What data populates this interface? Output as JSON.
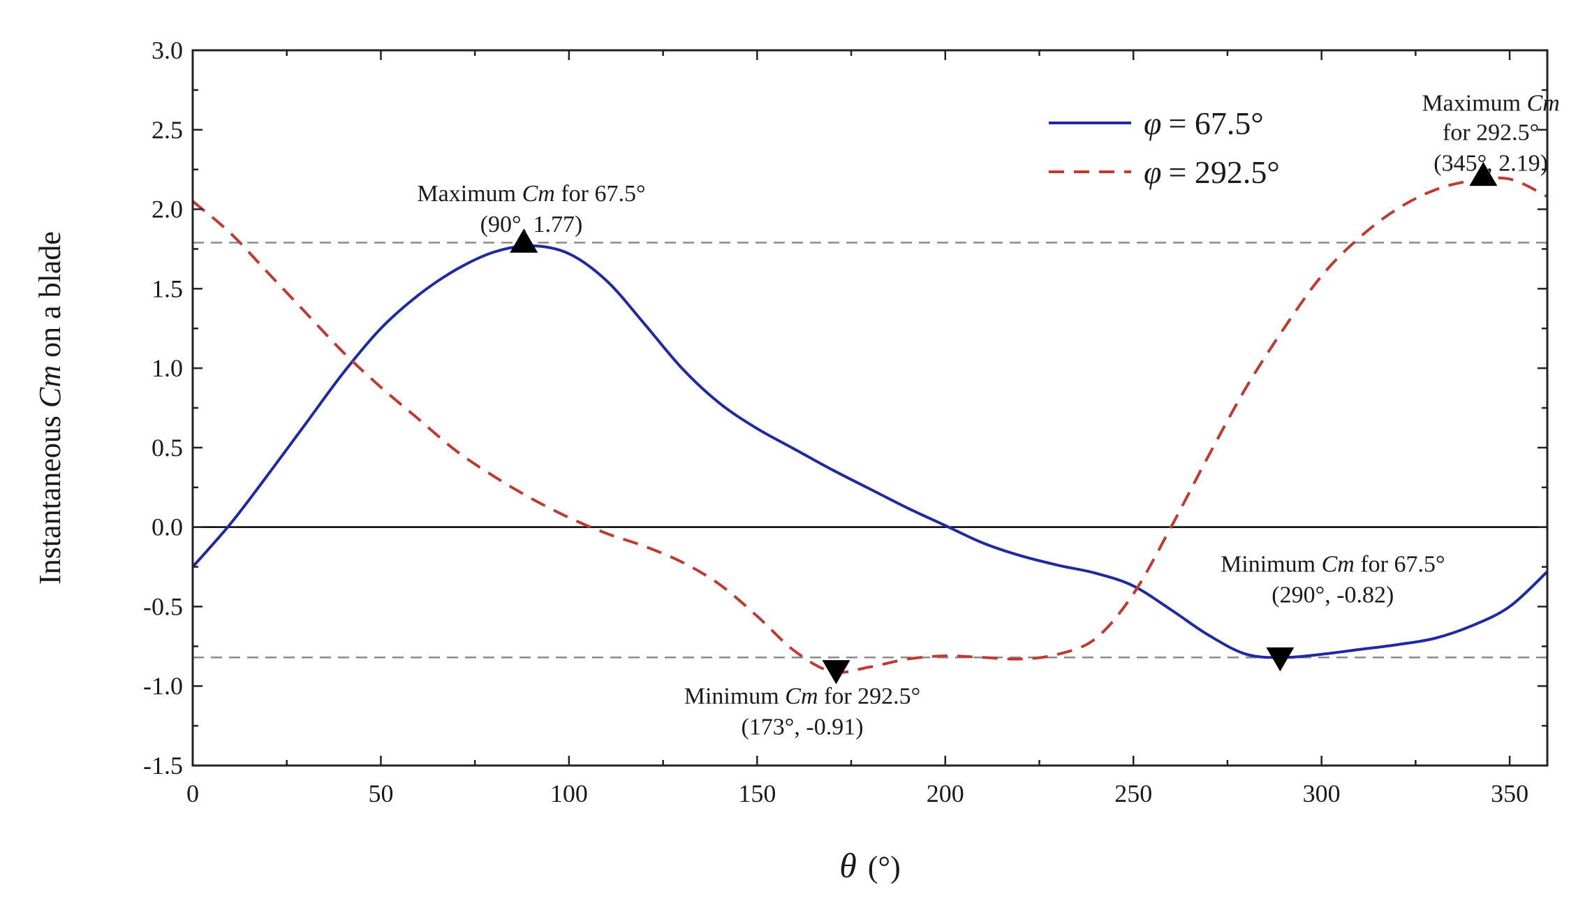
{
  "chart_data": {
    "type": "line",
    "title": "",
    "xlabel": "θ (°)",
    "xlabel_parts": {
      "symbol": "θ",
      "unit": "(°)"
    },
    "ylabel": "Instantaneous Cm on a blade",
    "ylabel_parts": {
      "prefix": "Instantaneous ",
      "italic": "Cm",
      "suffix": " on a blade"
    },
    "xlim": [
      0,
      360
    ],
    "ylim": [
      -1.5,
      3.0
    ],
    "xticks": [
      0,
      50,
      100,
      150,
      200,
      250,
      300,
      350
    ],
    "yticks": [
      -1.5,
      -1.0,
      -0.5,
      0.0,
      0.5,
      1.0,
      1.5,
      2.0,
      2.5,
      3.0
    ],
    "legend_position": "top-right",
    "series": [
      {
        "name": "φ = 67.5°",
        "legend_symbol": "φ",
        "legend_value": "= 67.5°",
        "color": "#1f2aa0",
        "style": "solid",
        "x": [
          0,
          10,
          20,
          30,
          40,
          50,
          60,
          70,
          80,
          90,
          100,
          110,
          120,
          130,
          140,
          150,
          160,
          170,
          180,
          190,
          200,
          210,
          220,
          230,
          240,
          250,
          260,
          270,
          280,
          290,
          300,
          310,
          320,
          330,
          340,
          350,
          360
        ],
        "y": [
          -0.25,
          0.02,
          0.33,
          0.65,
          0.97,
          1.25,
          1.46,
          1.62,
          1.73,
          1.77,
          1.72,
          1.55,
          1.28,
          1.0,
          0.78,
          0.62,
          0.49,
          0.36,
          0.24,
          0.12,
          0.01,
          -0.1,
          -0.18,
          -0.24,
          -0.29,
          -0.37,
          -0.52,
          -0.68,
          -0.8,
          -0.82,
          -0.8,
          -0.77,
          -0.74,
          -0.7,
          -0.62,
          -0.5,
          -0.28
        ]
      },
      {
        "name": "φ = 292.5°",
        "legend_symbol": "φ",
        "legend_value": "= 292.5°",
        "color": "#c03a34",
        "style": "dashed",
        "x": [
          0,
          10,
          20,
          30,
          40,
          50,
          60,
          70,
          80,
          90,
          100,
          110,
          120,
          130,
          140,
          150,
          160,
          170,
          180,
          190,
          200,
          210,
          220,
          230,
          240,
          250,
          260,
          270,
          280,
          290,
          300,
          310,
          320,
          330,
          340,
          350,
          360
        ],
        "y": [
          2.05,
          1.85,
          1.6,
          1.35,
          1.1,
          0.88,
          0.68,
          0.48,
          0.32,
          0.18,
          0.06,
          -0.04,
          -0.12,
          -0.22,
          -0.36,
          -0.56,
          -0.78,
          -0.91,
          -0.88,
          -0.83,
          -0.81,
          -0.82,
          -0.83,
          -0.8,
          -0.7,
          -0.42,
          0.0,
          0.45,
          0.88,
          1.25,
          1.58,
          1.82,
          2.0,
          2.12,
          2.18,
          2.19,
          2.08
        ]
      }
    ],
    "reference_lines": [
      {
        "orientation": "horizontal",
        "y": 1.79,
        "style": "dashed",
        "color": "#8a8a8a"
      },
      {
        "orientation": "horizontal",
        "y": -0.82,
        "style": "dashed",
        "color": "#8a8a8a"
      },
      {
        "orientation": "horizontal",
        "y": 0.0,
        "style": "solid",
        "color": "#000000"
      }
    ],
    "markers": [
      {
        "x": 88,
        "y": 1.79,
        "shape": "triangle-up"
      },
      {
        "x": 171,
        "y": -0.9,
        "shape": "triangle-down"
      },
      {
        "x": 289,
        "y": -0.82,
        "shape": "triangle-down"
      },
      {
        "x": 343,
        "y": 2.21,
        "shape": "triangle-up"
      }
    ],
    "annotations": [
      {
        "line1": {
          "pre": "Maximum ",
          "em": "Cm",
          "post": " for 67.5°"
        },
        "line2": "(90°, 1.77)",
        "at_x": 90,
        "at_y": 2.05
      },
      {
        "line1": {
          "pre": "Maximum ",
          "em": "Cm",
          "post": ""
        },
        "line1b": "for 292.5°",
        "line2": "(345°, 2.19)",
        "at_x": 345,
        "at_y": 2.62
      },
      {
        "line1": {
          "pre": "Minimum ",
          "em": "Cm",
          "post": " for 67.5°"
        },
        "line2": "(290°, -0.82)",
        "at_x": 303,
        "at_y": -0.28
      },
      {
        "line1": {
          "pre": "Minimum ",
          "em": "Cm",
          "post": " for 292.5°"
        },
        "line2": "(173°, -0.91)",
        "at_x": 162,
        "at_y": -1.11
      }
    ]
  }
}
